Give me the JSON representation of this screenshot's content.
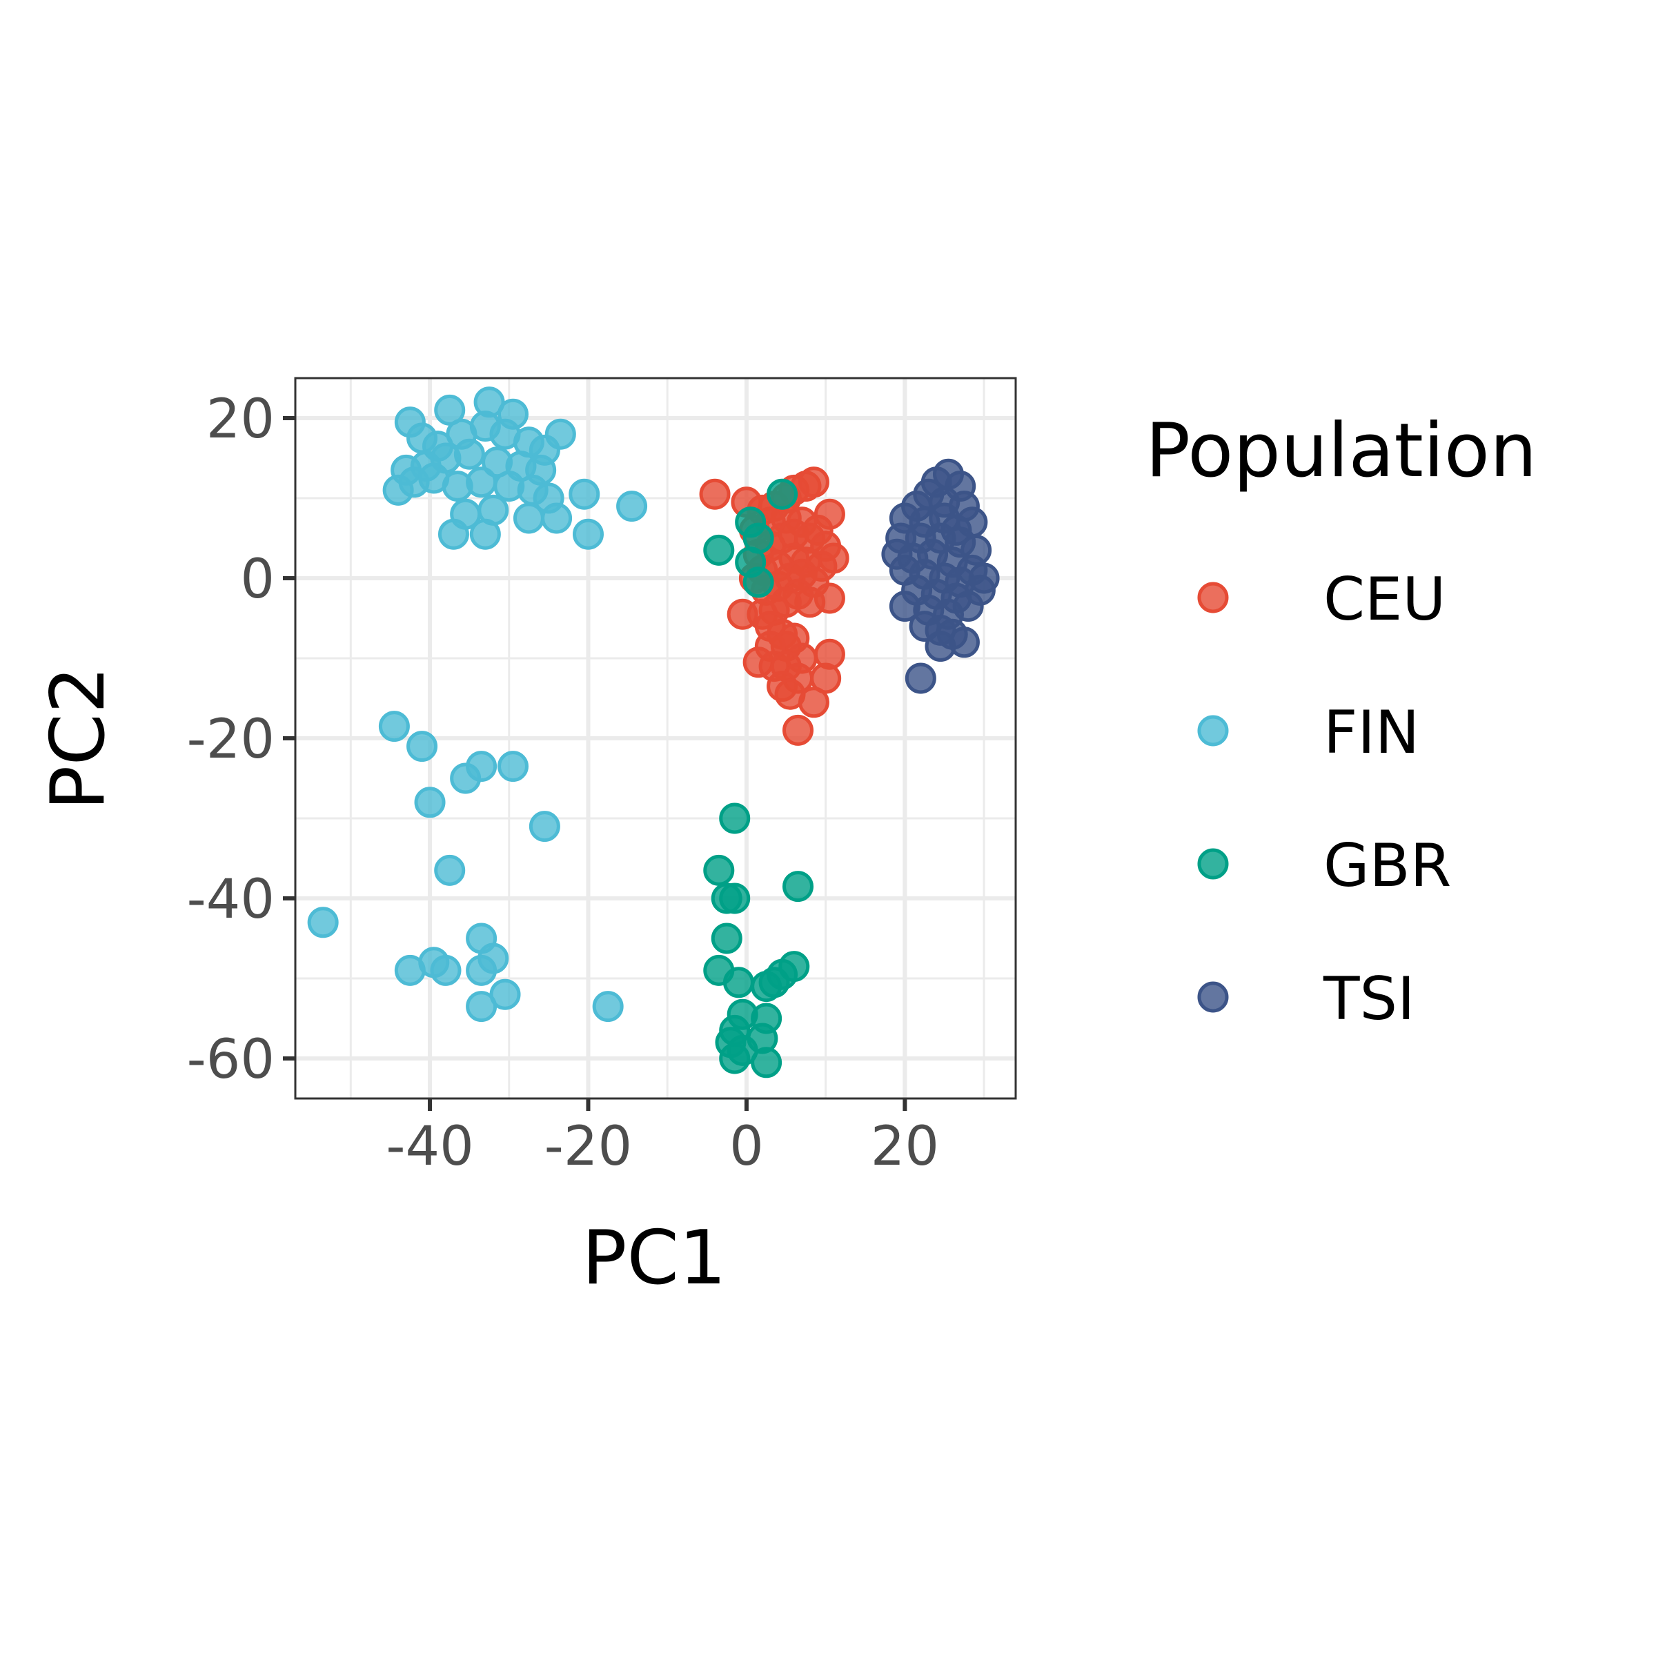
{
  "chart_data": {
    "type": "scatter",
    "xlabel": "PC1",
    "ylabel": "PC2",
    "xlim": [
      -57,
      34
    ],
    "ylim": [
      -65,
      25
    ],
    "xticks": [
      -40,
      -20,
      0,
      20
    ],
    "yticks": [
      20,
      0,
      -20,
      -40,
      -60
    ],
    "xtick_labels": [
      "-40",
      "-20",
      "0",
      "20"
    ],
    "ytick_labels": [
      "20",
      "0",
      "-20",
      "-40",
      "-60"
    ],
    "grid": true,
    "legend": {
      "title": "Population",
      "placement": "right"
    },
    "series": [
      {
        "name": "CEU",
        "color": "#E64B35",
        "points": [
          [
            -4,
            10.5
          ],
          [
            0,
            9.5
          ],
          [
            2,
            8.5
          ],
          [
            3.5,
            9
          ],
          [
            5,
            10
          ],
          [
            6,
            11
          ],
          [
            7.5,
            11.5
          ],
          [
            8.5,
            12
          ],
          [
            10.5,
            8
          ],
          [
            9,
            6
          ],
          [
            7,
            7
          ],
          [
            5,
            7.5
          ],
          [
            3,
            7
          ],
          [
            1,
            6
          ],
          [
            1.5,
            3
          ],
          [
            3,
            4
          ],
          [
            4.5,
            5
          ],
          [
            6,
            5.5
          ],
          [
            8,
            5
          ],
          [
            10,
            4
          ],
          [
            11,
            2.5
          ],
          [
            9.5,
            1.5
          ],
          [
            7.5,
            2
          ],
          [
            6,
            2.5
          ],
          [
            4,
            1.5
          ],
          [
            2,
            1
          ],
          [
            1,
            0
          ],
          [
            2.5,
            -1.5
          ],
          [
            4,
            -1
          ],
          [
            5.5,
            0
          ],
          [
            7,
            0.5
          ],
          [
            8.5,
            -0.5
          ],
          [
            10.5,
            -2.5
          ],
          [
            8,
            -3
          ],
          [
            6.5,
            -2
          ],
          [
            5,
            -3
          ],
          [
            3.5,
            -4
          ],
          [
            2,
            -4.5
          ],
          [
            -0.5,
            -4.5
          ],
          [
            3,
            -6
          ],
          [
            4.5,
            -7
          ],
          [
            6,
            -7.5
          ],
          [
            5,
            -8.5
          ],
          [
            3,
            -8.5
          ],
          [
            10.5,
            -9.5
          ],
          [
            7,
            -10
          ],
          [
            1.5,
            -10.5
          ],
          [
            3.5,
            -11
          ],
          [
            5,
            -11
          ],
          [
            6.5,
            -12.5
          ],
          [
            10,
            -12.5
          ],
          [
            4.5,
            -13.5
          ],
          [
            5.5,
            -14.5
          ],
          [
            8.5,
            -15.5
          ],
          [
            6.5,
            -19
          ]
        ]
      },
      {
        "name": "FIN",
        "color": "#4DBBD5",
        "points": [
          [
            -42.5,
            19.5
          ],
          [
            -37.5,
            21
          ],
          [
            -32.5,
            22
          ],
          [
            -29.5,
            20.5
          ],
          [
            -23.5,
            18
          ],
          [
            -41,
            17.5
          ],
          [
            -39,
            16.5
          ],
          [
            -36,
            18
          ],
          [
            -33,
            19
          ],
          [
            -30.5,
            18
          ],
          [
            -27.5,
            17
          ],
          [
            -25.5,
            16
          ],
          [
            -43,
            13.5
          ],
          [
            -40.5,
            14
          ],
          [
            -38,
            15
          ],
          [
            -35,
            15.5
          ],
          [
            -31.5,
            14.5
          ],
          [
            -28.5,
            14
          ],
          [
            -26,
            13.5
          ],
          [
            -44,
            11
          ],
          [
            -42,
            12
          ],
          [
            -39.5,
            12.5
          ],
          [
            -36.5,
            11.5
          ],
          [
            -33.5,
            12
          ],
          [
            -30,
            11.5
          ],
          [
            -27,
            11
          ],
          [
            -25,
            10
          ],
          [
            -20.5,
            10.5
          ],
          [
            -14.5,
            9
          ],
          [
            -35.5,
            8
          ],
          [
            -32,
            8.5
          ],
          [
            -27.5,
            7.5
          ],
          [
            -24,
            7.5
          ],
          [
            -37,
            5.5
          ],
          [
            -33,
            5.5
          ],
          [
            -20,
            5.5
          ],
          [
            -44.5,
            -18.5
          ],
          [
            -41,
            -21
          ],
          [
            -35.5,
            -25
          ],
          [
            -33.5,
            -23.5
          ],
          [
            -29.5,
            -23.5
          ],
          [
            -40,
            -28
          ],
          [
            -25.5,
            -31
          ],
          [
            -37.5,
            -36.5
          ],
          [
            -53.5,
            -43
          ],
          [
            -33.5,
            -45
          ],
          [
            -32,
            -47.5
          ],
          [
            -39.5,
            -48
          ],
          [
            -42.5,
            -49
          ],
          [
            -38,
            -49
          ],
          [
            -33.5,
            -49
          ],
          [
            -30.5,
            -52
          ],
          [
            -33.5,
            -53.5
          ],
          [
            -17.5,
            -53.5
          ]
        ]
      },
      {
        "name": "GBR",
        "color": "#00A087",
        "points": [
          [
            -3.5,
            3.5
          ],
          [
            4.5,
            10.5
          ],
          [
            0.5,
            7
          ],
          [
            1.5,
            5
          ],
          [
            0.5,
            2
          ],
          [
            1.5,
            -0.5
          ],
          [
            -1.5,
            -30
          ],
          [
            -3.5,
            -36.5
          ],
          [
            -2.5,
            -40
          ],
          [
            -1.5,
            -40
          ],
          [
            6.5,
            -38.5
          ],
          [
            -2.5,
            -45
          ],
          [
            -3.5,
            -49
          ],
          [
            -1,
            -50.5
          ],
          [
            6,
            -48.5
          ],
          [
            4.5,
            -49.5
          ],
          [
            3.5,
            -50.5
          ],
          [
            2.5,
            -51
          ],
          [
            -0.5,
            -54.5
          ],
          [
            2.5,
            -55
          ],
          [
            -1.5,
            -56.5
          ],
          [
            -2,
            -58
          ],
          [
            2,
            -57.5
          ],
          [
            -0.5,
            -59
          ],
          [
            -1.5,
            -60
          ],
          [
            2.5,
            -60.5
          ]
        ]
      },
      {
        "name": "TSI",
        "color": "#3C5488",
        "points": [
          [
            24,
            12
          ],
          [
            25.5,
            13
          ],
          [
            27,
            11.5
          ],
          [
            23,
            10.5
          ],
          [
            21.5,
            9
          ],
          [
            25,
            9.5
          ],
          [
            27.5,
            9
          ],
          [
            28.5,
            7
          ],
          [
            20,
            7.5
          ],
          [
            22.5,
            7
          ],
          [
            25,
            7.5
          ],
          [
            26.5,
            6
          ],
          [
            19.5,
            5
          ],
          [
            22,
            5
          ],
          [
            24.5,
            5
          ],
          [
            27,
            4.5
          ],
          [
            29,
            3.5
          ],
          [
            19,
            3
          ],
          [
            21,
            2.5
          ],
          [
            23.5,
            3
          ],
          [
            26,
            2
          ],
          [
            28.5,
            1
          ],
          [
            20,
            1
          ],
          [
            22.5,
            0.5
          ],
          [
            25,
            0
          ],
          [
            27,
            -0.5
          ],
          [
            30,
            0
          ],
          [
            21.5,
            -1.5
          ],
          [
            24,
            -2
          ],
          [
            26.5,
            -2.5
          ],
          [
            29.5,
            -1.5
          ],
          [
            20,
            -3.5
          ],
          [
            23,
            -4
          ],
          [
            25.5,
            -4.5
          ],
          [
            28,
            -3.5
          ],
          [
            22.5,
            -6
          ],
          [
            24.5,
            -6.5
          ],
          [
            26,
            -7
          ],
          [
            24.5,
            -8.5
          ],
          [
            27.5,
            -8
          ],
          [
            22,
            -12.5
          ]
        ]
      }
    ]
  }
}
